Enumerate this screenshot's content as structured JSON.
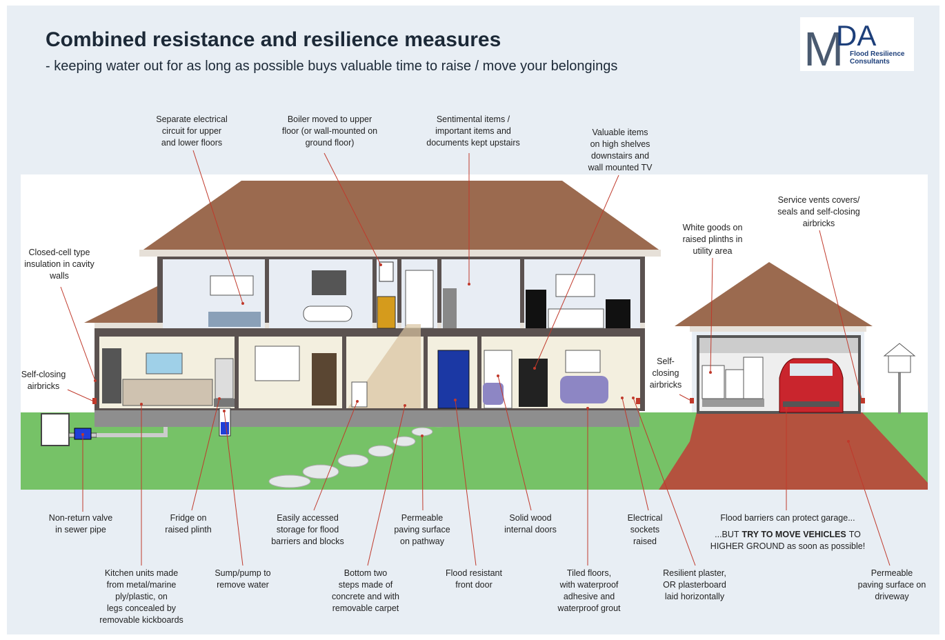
{
  "header": {
    "title": "Combined resistance and resilience measures",
    "subtitle": "- keeping water out for as long as possible buys valuable time to raise / move your belongings"
  },
  "logo": {
    "mark": "M",
    "letters": "DA",
    "line1": "Flood Resilience",
    "line2": "Consultants"
  },
  "labels": [
    {
      "lines": [
        "Separate electrical",
        "circuit for upper",
        "and lower floors"
      ]
    },
    {
      "lines": [
        "Boiler moved to upper",
        "floor (or wall-mounted on",
        "ground floor)"
      ]
    },
    {
      "lines": [
        "Sentimental items /",
        "important items and",
        "documents kept upstairs"
      ]
    },
    {
      "lines": [
        "Valuable items",
        "on high shelves",
        "downstairs and",
        "wall mounted TV"
      ]
    },
    {
      "lines": [
        "Service vents covers/",
        "seals and self-closing",
        "airbricks"
      ]
    },
    {
      "lines": [
        "White goods on",
        "raised plinths in",
        "utility area"
      ]
    },
    {
      "lines": [
        "Closed-cell type",
        "insulation in cavity",
        "walls"
      ]
    },
    {
      "lines": [
        "Self-closing",
        "airbricks"
      ]
    },
    {
      "lines": [
        "Self-",
        "closing",
        "airbricks"
      ]
    },
    {
      "lines": [
        "Non-return valve",
        "in sewer pipe"
      ]
    },
    {
      "lines": [
        "Fridge on",
        "raised plinth"
      ]
    },
    {
      "lines": [
        "Easily accessed",
        "storage for flood",
        "barriers and blocks"
      ]
    },
    {
      "lines": [
        "Permeable",
        "paving surface",
        "on pathway"
      ]
    },
    {
      "lines": [
        "Solid wood",
        "internal doors"
      ]
    },
    {
      "lines": [
        "Electrical",
        "sockets",
        "raised"
      ]
    },
    {
      "lines": [
        "Flood barriers can protect garage..."
      ]
    },
    {
      "lines": [
        "Kitchen units made",
        "from metal/marine",
        "ply/plastic, on",
        "legs concealed by",
        "removable kickboards"
      ]
    },
    {
      "lines": [
        "Sump/pump to",
        "remove water"
      ]
    },
    {
      "lines": [
        "Bottom two",
        "steps made of",
        "concrete and with",
        "removable carpet"
      ]
    },
    {
      "lines": [
        "Flood resistant",
        "front door"
      ]
    },
    {
      "lines": [
        "Tiled floors,",
        "with waterproof",
        "adhesive and",
        "waterproof grout"
      ]
    },
    {
      "lines": [
        "Resilient plaster,",
        "OR plasterboard",
        "laid horizontally"
      ]
    },
    {
      "lines": [
        "Permeable",
        "paving surface on",
        "driveway"
      ]
    }
  ],
  "garage_note": {
    "before": "...BUT",
    "bold": "TRY TO MOVE VEHICLES",
    "after": "TO",
    "line2": "HIGHER GROUND as soon as possible!"
  }
}
